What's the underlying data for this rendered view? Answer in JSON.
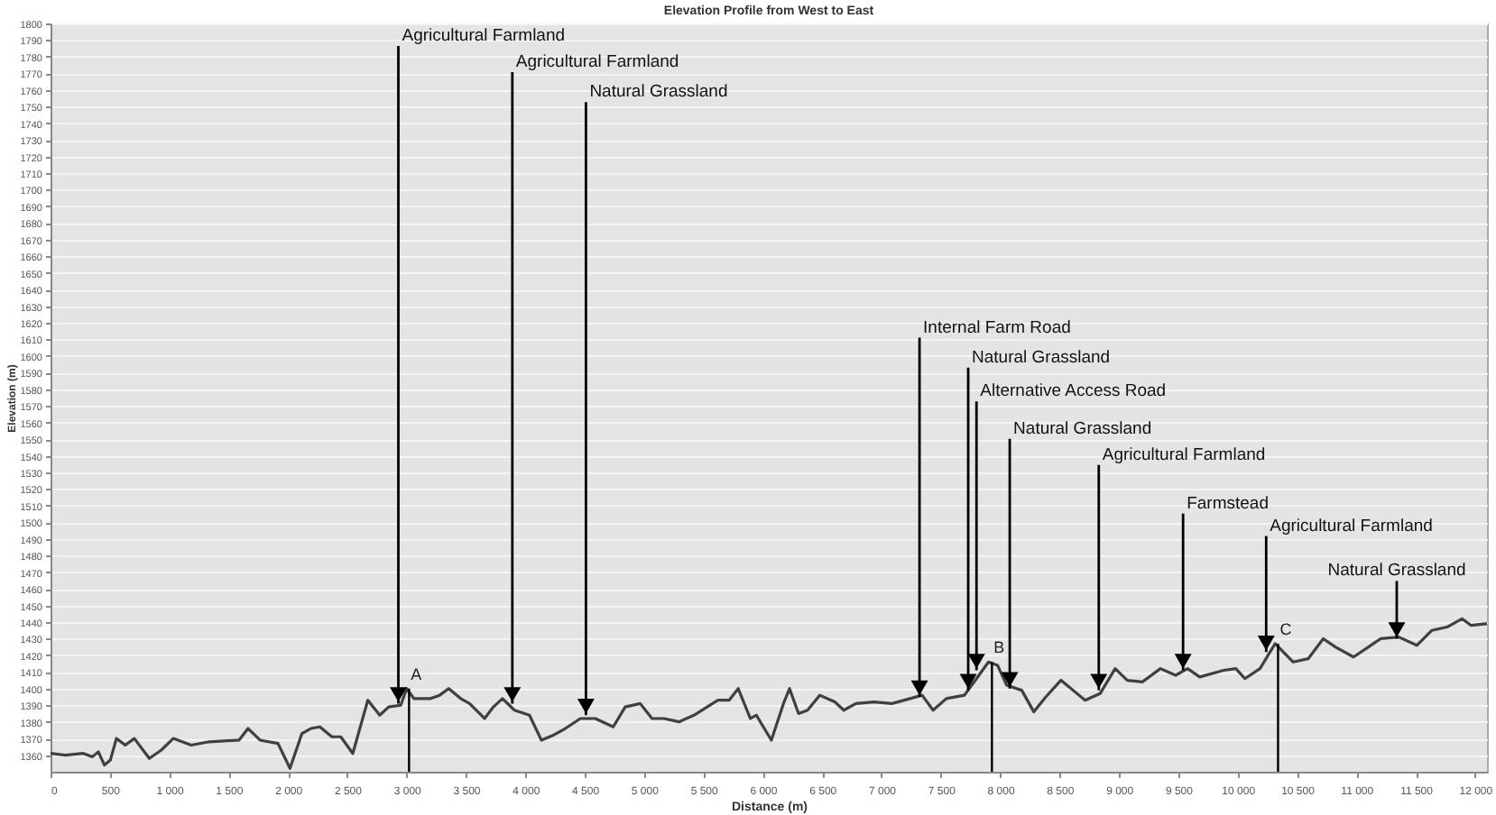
{
  "chart_data": {
    "type": "line",
    "title": "Elevation Profile from West to East",
    "xlabel": "Distance (m)",
    "ylabel": "Elevation (m)",
    "xlim": [
      0,
      12100
    ],
    "ylim": [
      1350,
      1800
    ],
    "xticks": [
      0,
      500,
      {
        "value": 1000,
        "label": "1 000"
      },
      {
        "value": 1500,
        "label": "1 500"
      },
      {
        "value": 2000,
        "label": "2 000"
      },
      {
        "value": 2500,
        "label": "2 500"
      },
      {
        "value": 3000,
        "label": "3 000"
      },
      {
        "value": 3500,
        "label": "3 500"
      },
      {
        "value": 4000,
        "label": "4 000"
      },
      {
        "value": 4500,
        "label": "4 500"
      },
      {
        "value": 5000,
        "label": "5 000"
      },
      {
        "value": 5500,
        "label": "5 500"
      },
      {
        "value": 6000,
        "label": "6 000"
      },
      {
        "value": 6500,
        "label": "6 500"
      },
      {
        "value": 7000,
        "label": "7 000"
      },
      {
        "value": 7500,
        "label": "7 500"
      },
      {
        "value": 8000,
        "label": "8 000"
      },
      {
        "value": 8500,
        "label": "8 500"
      },
      {
        "value": 9000,
        "label": "9 000"
      },
      {
        "value": 9500,
        "label": "9 500"
      },
      {
        "value": 10000,
        "label": "10 000"
      },
      {
        "value": 10500,
        "label": "10 500"
      },
      {
        "value": 11000,
        "label": "11 000"
      },
      {
        "value": 11500,
        "label": "11 500"
      },
      {
        "value": 12000,
        "label": "12 000"
      }
    ],
    "yticks": [
      1360,
      1370,
      1380,
      1390,
      1400,
      1410,
      1420,
      1430,
      1440,
      1450,
      1460,
      1470,
      1480,
      1490,
      1500,
      1510,
      1520,
      1530,
      1540,
      1550,
      1560,
      1570,
      1580,
      1590,
      1600,
      1610,
      1620,
      1630,
      1640,
      1650,
      1660,
      1670,
      1680,
      1690,
      1700,
      1710,
      1720,
      1730,
      1740,
      1750,
      1760,
      1770,
      1780,
      1790,
      1800
    ],
    "grid": "y",
    "line_style": "solid",
    "series": [
      {
        "color": "#404040",
        "x": [
          0,
          126,
          277,
          353,
          403,
          454,
          504,
          555,
          630,
          706,
          832,
          933,
          1034,
          1185,
          1336,
          1588,
          1664,
          1765,
          1916,
          2017,
          2118,
          2193,
          2269,
          2370,
          2445,
          2546,
          2673,
          2773,
          2849,
          2950,
          3000,
          3061,
          3202,
          3278,
          3354,
          3455,
          3530,
          3656,
          3731,
          3807,
          3908,
          4034,
          4135,
          4236,
          4337,
          4463,
          4589,
          4740,
          4841,
          4967,
          5067,
          5168,
          5294,
          5420,
          5622,
          5716,
          5793,
          5895,
          5945,
          6072,
          6174,
          6225,
          6301,
          6377,
          6479,
          6606,
          6682,
          6784,
          6936,
          7088,
          7241,
          7342,
          7434,
          7546,
          7698,
          7800,
          7901,
          7977,
          8054,
          8181,
          8283,
          8384,
          8511,
          8613,
          8715,
          8841,
          8968,
          9070,
          9197,
          9349,
          9477,
          9578,
          9680,
          9883,
          9985,
          10061,
          10188,
          10315,
          10468,
          10595,
          10721,
          10823,
          10976,
          11102,
          11204,
          11357,
          11509,
          11636,
          11763,
          11890,
          11966,
          12093
        ],
        "values": [
          1361,
          1360,
          1361,
          1359,
          1362,
          1354,
          1357,
          1370,
          1366,
          1370,
          1358,
          1363,
          1370,
          1366,
          1368,
          1369,
          1376,
          1369,
          1367,
          1352,
          1373,
          1376,
          1377,
          1371,
          1371,
          1361,
          1393,
          1384,
          1389,
          1390,
          1400,
          1394,
          1394,
          1396,
          1400,
          1394,
          1391,
          1382,
          1389,
          1394,
          1387,
          1384,
          1369,
          1372,
          1376,
          1382,
          1382,
          1377,
          1389,
          1391,
          1382,
          1382,
          1380,
          1384,
          1393,
          1393,
          1400,
          1382,
          1384,
          1369,
          1391,
          1400,
          1385,
          1387,
          1396,
          1392,
          1387,
          1391,
          1392,
          1391,
          1394,
          1396,
          1387,
          1394,
          1396,
          1406,
          1416,
          1414,
          1402,
          1399,
          1386,
          1395,
          1405,
          1399,
          1393,
          1397,
          1412,
          1405,
          1404,
          1412,
          1408,
          1412,
          1407,
          1411,
          1412,
          1406,
          1412,
          1427,
          1416,
          1418,
          1430,
          1425,
          1419,
          1425,
          1430,
          1431,
          1426,
          1435,
          1437,
          1442,
          1438,
          1439
        ]
      }
    ],
    "annotations": [
      {
        "text": "Agricultural Farmland",
        "x": 2930,
        "y": 1391
      },
      {
        "text": "Agricultural Farmland",
        "x": 3890,
        "y": 1391
      },
      {
        "text": "Natural Grassland",
        "x": 4510,
        "y": 1384
      },
      {
        "text": "Internal Farm Road",
        "x": 7320,
        "y": 1395
      },
      {
        "text": "Natural Grassland",
        "x": 7730,
        "y": 1399
      },
      {
        "text": "Alternative Access Road",
        "x": 7800,
        "y": 1411
      },
      {
        "text": "Natural Grassland",
        "x": 8080,
        "y": 1400
      },
      {
        "text": "Agricultural Farmland",
        "x": 8830,
        "y": 1399
      },
      {
        "text": "Farmstead",
        "x": 9540,
        "y": 1411
      },
      {
        "text": "Agricultural Farmland",
        "x": 10240,
        "y": 1422
      },
      {
        "text": "Natural Grassland",
        "x": 11340,
        "y": 1430
      }
    ],
    "ref_lines": [
      {
        "axis": "x",
        "value": 3020,
        "label": "A"
      },
      {
        "axis": "x",
        "value": 7930,
        "label": "B"
      },
      {
        "axis": "x",
        "value": 10340,
        "label": "C"
      }
    ]
  }
}
